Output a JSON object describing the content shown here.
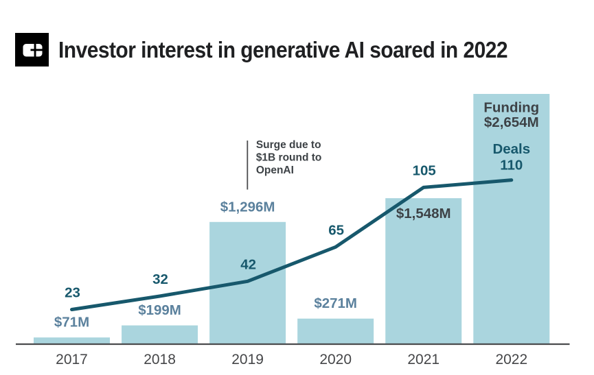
{
  "header": {
    "title": "Investor interest in generative AI soared in 2022"
  },
  "chart_data": {
    "type": "bar+line",
    "title": "Investor interest in generative AI soared in 2022",
    "categories": [
      "2017",
      "2018",
      "2019",
      "2020",
      "2021",
      "2022"
    ],
    "series": [
      {
        "name": "Funding",
        "type": "bar",
        "unit": "$M",
        "values": [
          71,
          199,
          1296,
          271,
          1548,
          2654
        ],
        "labels": [
          "$71M",
          "$199M",
          "$1,296M",
          "$271M",
          "$1,548M",
          "$2,654M"
        ],
        "color": "#aad5de"
      },
      {
        "name": "Deals",
        "type": "line",
        "values": [
          23,
          32,
          42,
          65,
          105,
          110
        ],
        "labels": [
          "23",
          "32",
          "42",
          "65",
          "105",
          "110"
        ],
        "color": "#17586c"
      }
    ],
    "annotation": {
      "text_lines": [
        "Surge due to",
        "$1B round to",
        "OpenAI"
      ],
      "target_category": "2019"
    },
    "final_bar_legend": {
      "funding_label": "Funding",
      "funding_value": "$2,654M",
      "deals_label": "Deals",
      "deals_value": "110"
    },
    "axis": {
      "x_labels": [
        "2017",
        "2018",
        "2019",
        "2020",
        "2021",
        "2022"
      ],
      "y_axis_visible": false,
      "grid": false,
      "ylim_funding": [
        0,
        2654
      ],
      "ylim_deals": [
        0,
        110
      ],
      "legend_position": "inside-last-bar"
    }
  },
  "colors": {
    "bar_fill": "#aad5de",
    "line": "#17586c",
    "deal_label": "#17586c",
    "funding_label_light": "#5b819d",
    "funding_label_dark": "#3d4246",
    "axis_line": "#4a4b4d",
    "x_label": "#454648",
    "title": "#1f2022",
    "annotation_text": "#3d4246",
    "logo_bg": "#000000",
    "logo_fg": "#ffffff"
  }
}
